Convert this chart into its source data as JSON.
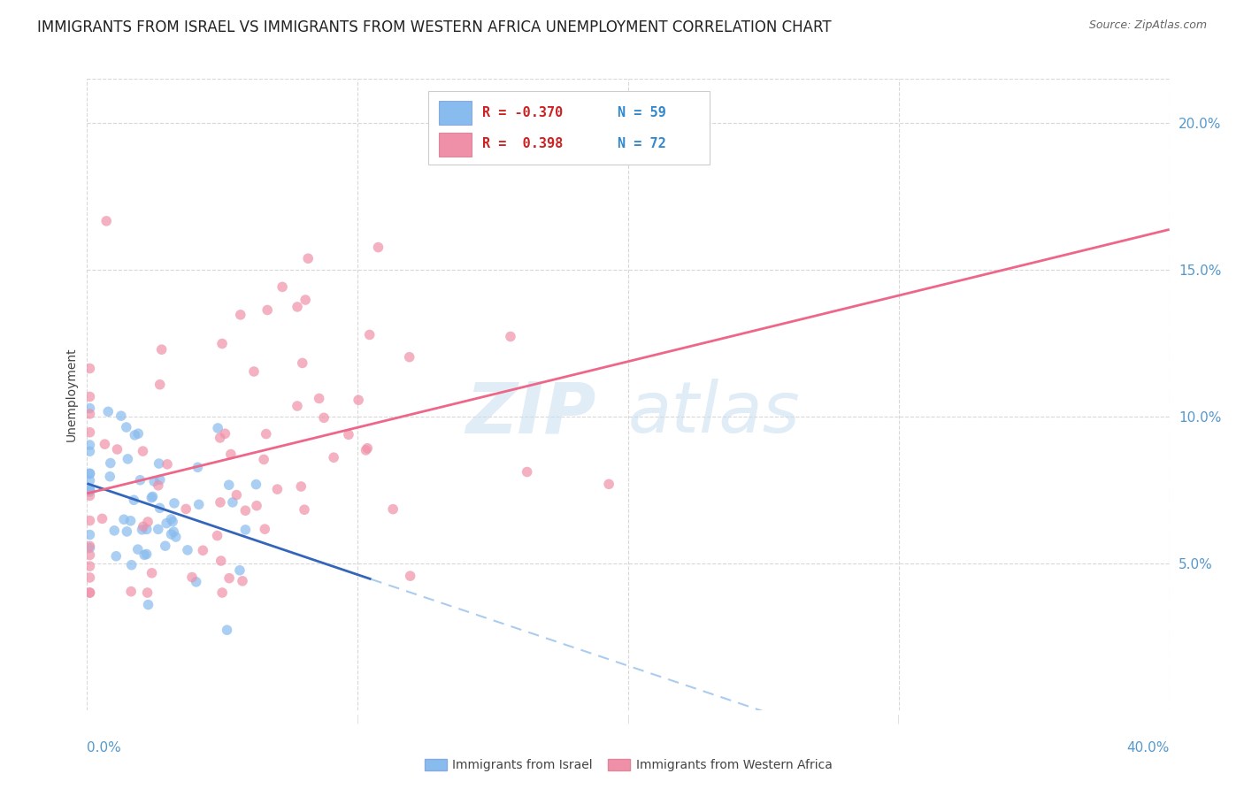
{
  "title": "IMMIGRANTS FROM ISRAEL VS IMMIGRANTS FROM WESTERN AFRICA UNEMPLOYMENT CORRELATION CHART",
  "source": "Source: ZipAtlas.com",
  "ylabel": "Unemployment",
  "right_yticks": [
    0.05,
    0.1,
    0.15,
    0.2
  ],
  "right_yticklabels": [
    "5.0%",
    "10.0%",
    "15.0%",
    "20.0%"
  ],
  "israel_color": "#88bbee",
  "western_africa_color": "#f090a8",
  "israel_line_color": "#3366bb",
  "wa_line_color": "#ee6688",
  "israel_dash_color": "#aaccee",
  "background_color": "#ffffff",
  "grid_color": "#d8d8d8",
  "title_fontsize": 12,
  "axis_label_fontsize": 10,
  "tick_fontsize": 11,
  "tick_color": "#5599cc",
  "xlim": [
    0.0,
    0.4
  ],
  "ylim": [
    0.0,
    0.215
  ],
  "watermark_color": "#c8ddf0",
  "legend_box_color": "#ffffff",
  "legend_border_color": "#cccccc",
  "legend_text_color": "#cc2222",
  "legend_n_color": "#3388cc",
  "bottom_label_color": "#333333"
}
